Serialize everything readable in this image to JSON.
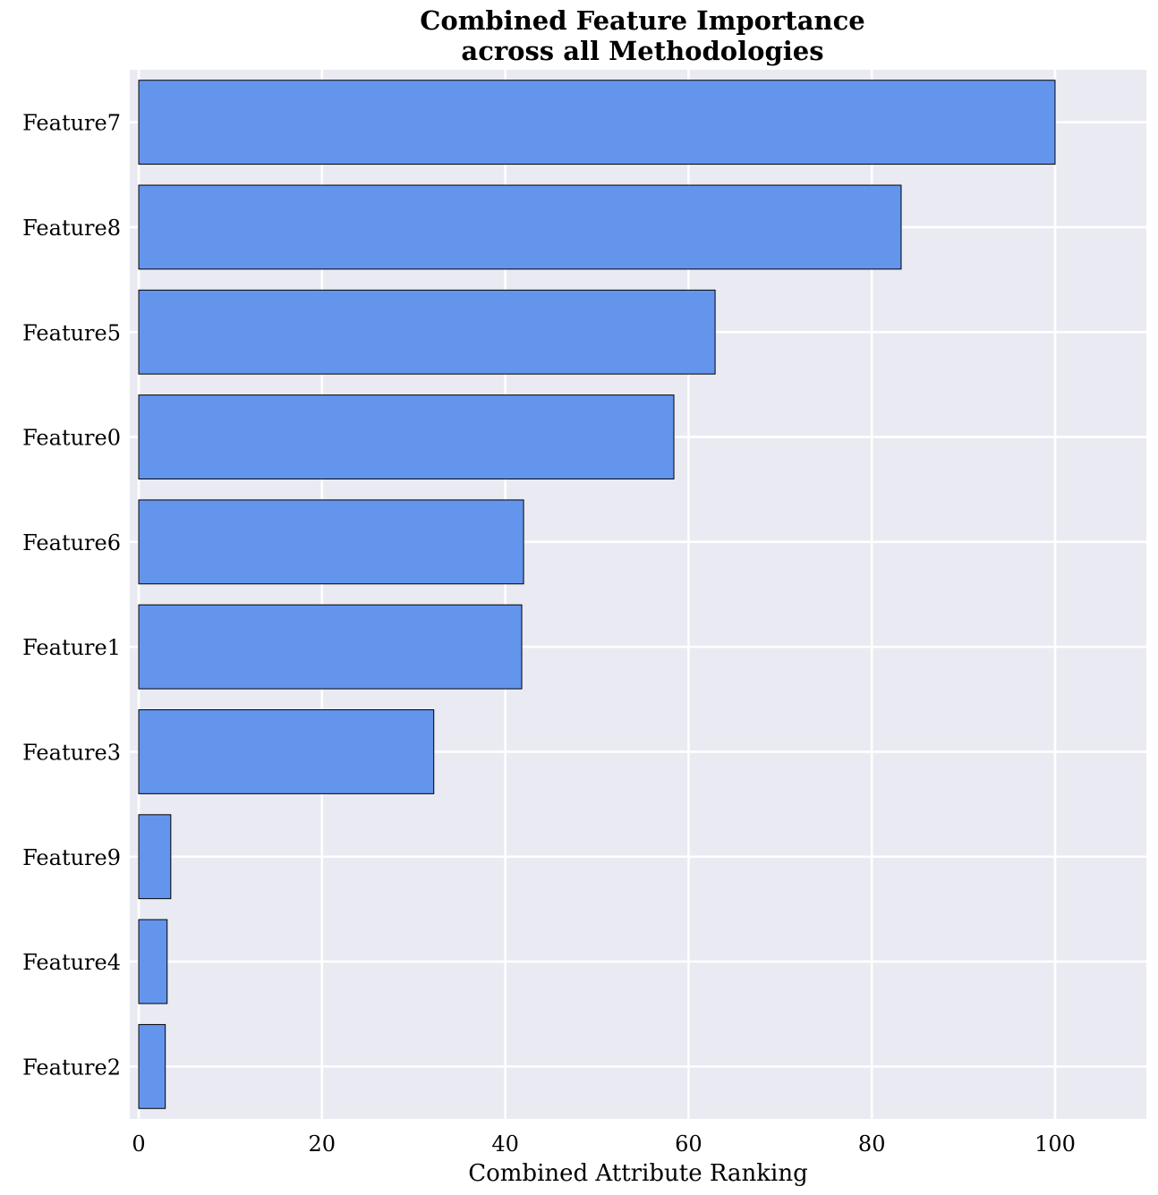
{
  "chart_data": {
    "type": "bar",
    "orientation": "horizontal",
    "title": [
      "Combined Feature Importance",
      "across all Methodologies"
    ],
    "xlabel": "Combined Attribute Ranking",
    "ylabel": "",
    "xlim": [
      -1,
      110
    ],
    "xticks": [
      0,
      20,
      40,
      60,
      80,
      100
    ],
    "categories": [
      "Feature7",
      "Feature8",
      "Feature5",
      "Feature0",
      "Feature6",
      "Feature1",
      "Feature3",
      "Feature9",
      "Feature4",
      "Feature2"
    ],
    "values": [
      100,
      83.2,
      62.9,
      58.4,
      42.0,
      41.8,
      32.2,
      3.5,
      3.1,
      2.9
    ],
    "grid": true,
    "bar_color": "#6495ED",
    "bar_edge_color": "#000000",
    "background_color": "#EAEAF2",
    "grid_color": "#FFFFFF"
  }
}
